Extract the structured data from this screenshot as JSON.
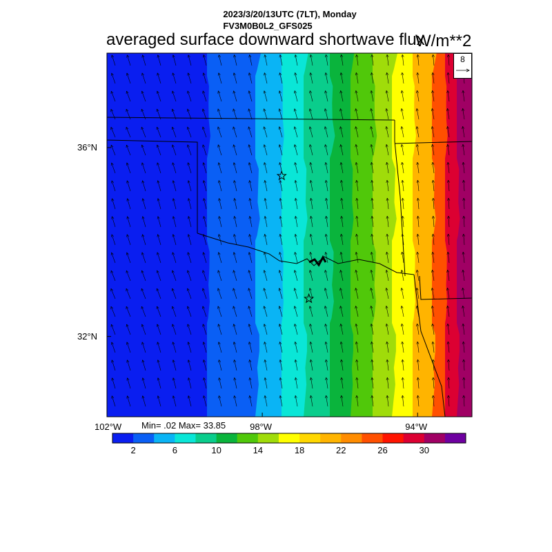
{
  "header": {
    "line1": "2023/3/20/13UTC (7LT), Monday",
    "line2": "FV3M0B0L2_GFS025"
  },
  "title": "averaged surface downward shortwave flux",
  "units": "W/m**2",
  "reference_vector": {
    "magnitude": "8",
    "arrow_icon": "reference-vector-arrow-icon"
  },
  "axes": {
    "lat_labels": [
      {
        "text": "36°N",
        "lat": 36
      },
      {
        "text": "32°N",
        "lat": 32
      }
    ],
    "lon_labels": [
      {
        "text": "102°W",
        "lon": -102
      },
      {
        "text": "98°W",
        "lon": -98
      },
      {
        "text": "94°W",
        "lon": -94
      }
    ],
    "lon_range": [
      -102,
      -92.6
    ],
    "lat_range": [
      30.3,
      38.0
    ]
  },
  "stats": {
    "text": "Min= .02 Max= 33.85",
    "min": 0.02,
    "max": 33.85
  },
  "colorbar": {
    "colors": [
      "#0a1ef0",
      "#0a5ff5",
      "#0ab4f5",
      "#0ae6d7",
      "#0acd8c",
      "#0ab43c",
      "#50c80a",
      "#a0dc0a",
      "#ffff00",
      "#ffd700",
      "#ffb400",
      "#ff8c00",
      "#ff5000",
      "#ff1400",
      "#dc0032",
      "#a00064",
      "#6e00a0"
    ],
    "tick_labels": [
      "2",
      "6",
      "10",
      "14",
      "18",
      "22",
      "26",
      "30"
    ],
    "tick_values": [
      2,
      6,
      10,
      14,
      18,
      22,
      26,
      30
    ]
  },
  "map": {
    "field_description_values": "flux increases eastward from ~0 at 102W to ~34 at 92.6W",
    "stations": [
      {
        "name": "star-marker-oklahoma-city"
      },
      {
        "name": "star-marker-dallas"
      }
    ]
  }
}
